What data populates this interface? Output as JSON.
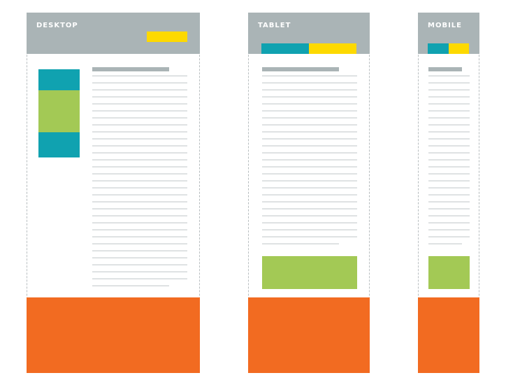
{
  "colors": {
    "header": "#aab4b6",
    "footer": "#f26b21",
    "teal": "#10a2b0",
    "yellow": "#fdd900",
    "green": "#a3c955",
    "line": "#c3c9cb"
  },
  "frames": [
    {
      "key": "desktop",
      "label": "DESKTOP"
    },
    {
      "key": "tablet",
      "label": "TABLET"
    },
    {
      "key": "mobile",
      "label": "MOBILE"
    }
  ]
}
